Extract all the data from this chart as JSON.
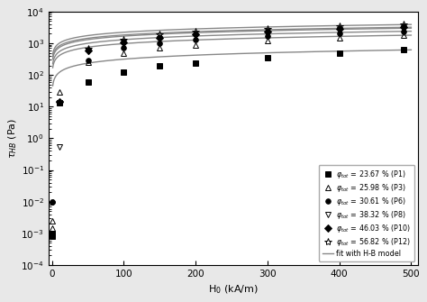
{
  "xlabel": "H$_0$ (kA/m)",
  "ylabel": "$\\tau_{HB}$ (Pa)",
  "xlim": [
    -5,
    510
  ],
  "ylim": [
    0.0001,
    10000.0
  ],
  "series": [
    {
      "label": "$\\varphi_{tot}$ = 23.67 % (P1)",
      "marker": "s",
      "markersize": 4,
      "color": "black",
      "fillstyle": "full",
      "x_data": [
        0,
        0,
        10,
        50,
        100,
        150,
        200,
        300,
        400,
        490
      ],
      "y_data": [
        0.001,
        0.0008,
        13,
        60,
        120,
        190,
        230,
        360,
        490,
        620
      ],
      "hb_tau0": 0.001,
      "hb_K": 620,
      "hb_n": 0.42
    },
    {
      "label": "$\\varphi_{tot}$ = 25.98 % (P3)",
      "marker": "^",
      "markersize": 5,
      "color": "black",
      "fillstyle": "none",
      "x_data": [
        0,
        0,
        10,
        50,
        100,
        150,
        200,
        300,
        400,
        490
      ],
      "y_data": [
        0.0015,
        0.0025,
        30,
        250,
        500,
        700,
        900,
        1200,
        1500,
        1800
      ],
      "hb_tau0": 0.01,
      "hb_K": 1800,
      "hb_n": 0.38
    },
    {
      "label": "$\\varphi_{tot}$ = 30.61 % (P6)",
      "marker": "o",
      "markersize": 4,
      "color": "black",
      "fillstyle": "full",
      "x_data": [
        0,
        0,
        10,
        50,
        100,
        150,
        200,
        300,
        400,
        490
      ],
      "y_data": [
        0.01,
        0.01,
        14,
        280,
        700,
        1000,
        1300,
        1700,
        2100,
        2400
      ],
      "hb_tau0": 0.01,
      "hb_K": 2400,
      "hb_n": 0.38
    },
    {
      "label": "$\\varphi_{tot}$ = 38.32 % (P8)",
      "marker": "v",
      "markersize": 5,
      "color": "black",
      "fillstyle": "none",
      "x_data": [
        10,
        50,
        100,
        150,
        200,
        300,
        400,
        490
      ],
      "y_data": [
        0.55,
        550,
        1050,
        1400,
        1700,
        2100,
        2600,
        3000
      ],
      "hb_tau0": 0.01,
      "hb_K": 3000,
      "hb_n": 0.36
    },
    {
      "label": "$\\varphi_{tot}$ = 46.03 % (P10)",
      "marker": "D",
      "markersize": 4,
      "color": "black",
      "fillstyle": "full",
      "x_data": [
        10,
        50,
        100,
        150,
        200,
        300,
        400,
        490
      ],
      "y_data": [
        14,
        580,
        1100,
        1500,
        1900,
        2400,
        2900,
        3200
      ],
      "hb_tau0": 10,
      "hb_K": 3200,
      "hb_n": 0.35
    },
    {
      "label": "$\\varphi_{tot}$ = 56.82 % (P12)",
      "marker": "*",
      "markersize": 6,
      "color": "black",
      "fillstyle": "none",
      "x_data": [
        10,
        50,
        100,
        150,
        200,
        300,
        400,
        490
      ],
      "y_data": [
        14,
        680,
        1300,
        1900,
        2300,
        2900,
        3400,
        3900
      ],
      "hb_tau0": 10,
      "hb_K": 3900,
      "hb_n": 0.35
    }
  ],
  "fit_color": "#888888",
  "fit_linewidth": 1.0,
  "background_color": "#e8e8e8",
  "plot_bg": "#ffffff"
}
